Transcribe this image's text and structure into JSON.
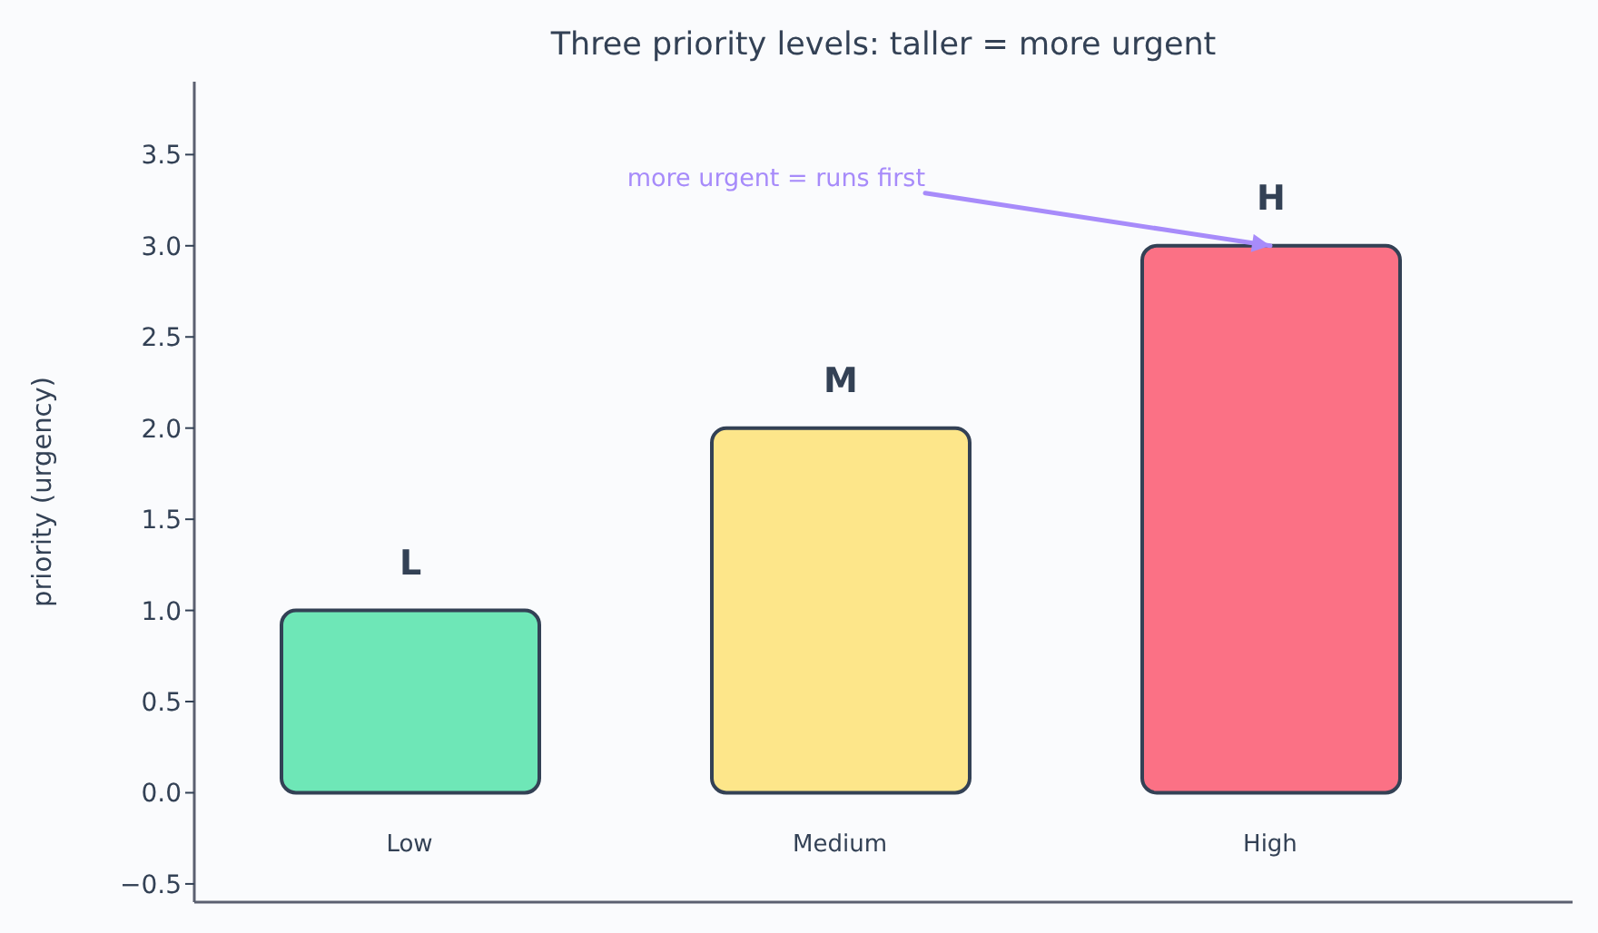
{
  "chart_data": {
    "type": "bar",
    "title": "Three priority levels: taller = more urgent",
    "ylabel": "priority (urgency)",
    "categories": [
      "Low",
      "Medium",
      "High"
    ],
    "values": [
      1,
      2,
      3
    ],
    "colors": [
      "#6ee7b7",
      "#fde68a",
      "#fb7185"
    ],
    "value_labels": [
      "L",
      "M",
      "H"
    ],
    "ylim": [
      -0.6,
      3.9
    ],
    "yticks": [
      {
        "value": -0.5,
        "label": "−0.5"
      },
      {
        "value": 0,
        "label": "0.0"
      },
      0.5,
      {
        "value": 1,
        "label": "1.0"
      },
      1.5,
      {
        "value": 2,
        "label": "2.0"
      },
      2.5,
      {
        "value": 3,
        "label": "3.0"
      },
      3.5
    ],
    "annotations": [
      {
        "text": "more urgent = runs first",
        "x": "High",
        "y": 3.0
      }
    ]
  }
}
